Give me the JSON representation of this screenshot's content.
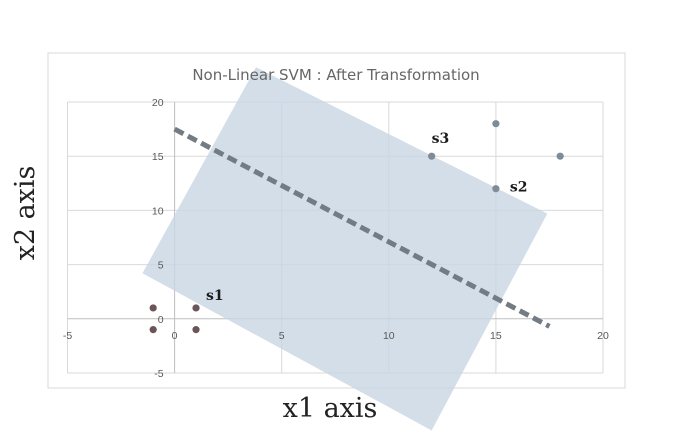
{
  "chart_data": {
    "type": "scatter",
    "title": "Non-Linear SVM : After Transformation",
    "xlabel": "x1 axis",
    "ylabel": "x2 axis",
    "xlim": [
      -5,
      20
    ],
    "ylim": [
      -5,
      20
    ],
    "xticks": [
      "-5",
      "0",
      "5",
      "10",
      "15",
      "20"
    ],
    "yticks": [
      "-5",
      "0",
      "5",
      "10",
      "15",
      "20"
    ],
    "grid": true,
    "series": [
      {
        "color": "#6b5558",
        "points": [
          [
            -1,
            1
          ],
          [
            -1,
            -1
          ],
          [
            1,
            1
          ],
          [
            1,
            -1
          ]
        ]
      },
      {
        "color": "#7f8c96",
        "points": [
          [
            12,
            15
          ],
          [
            15,
            18
          ],
          [
            15,
            12
          ],
          [
            18,
            15
          ]
        ]
      }
    ],
    "annotations": [
      {
        "text": "s1",
        "x": 1,
        "y": 1
      },
      {
        "text": "s2",
        "x": 15,
        "y": 12
      },
      {
        "text": "s3",
        "x": 12,
        "y": 15
      }
    ],
    "decision_boundary": {
      "from": [
        0,
        17.5
      ],
      "to": [
        17.5,
        -0.7
      ],
      "style": "dashed",
      "color": "#737b84"
    },
    "margin_region": {
      "color": "#c9d6e3",
      "corners": [
        [
          -1.5,
          4.2
        ],
        [
          3.8,
          23.2
        ],
        [
          17.4,
          9.7
        ],
        [
          12,
          -10.3
        ]
      ]
    }
  }
}
